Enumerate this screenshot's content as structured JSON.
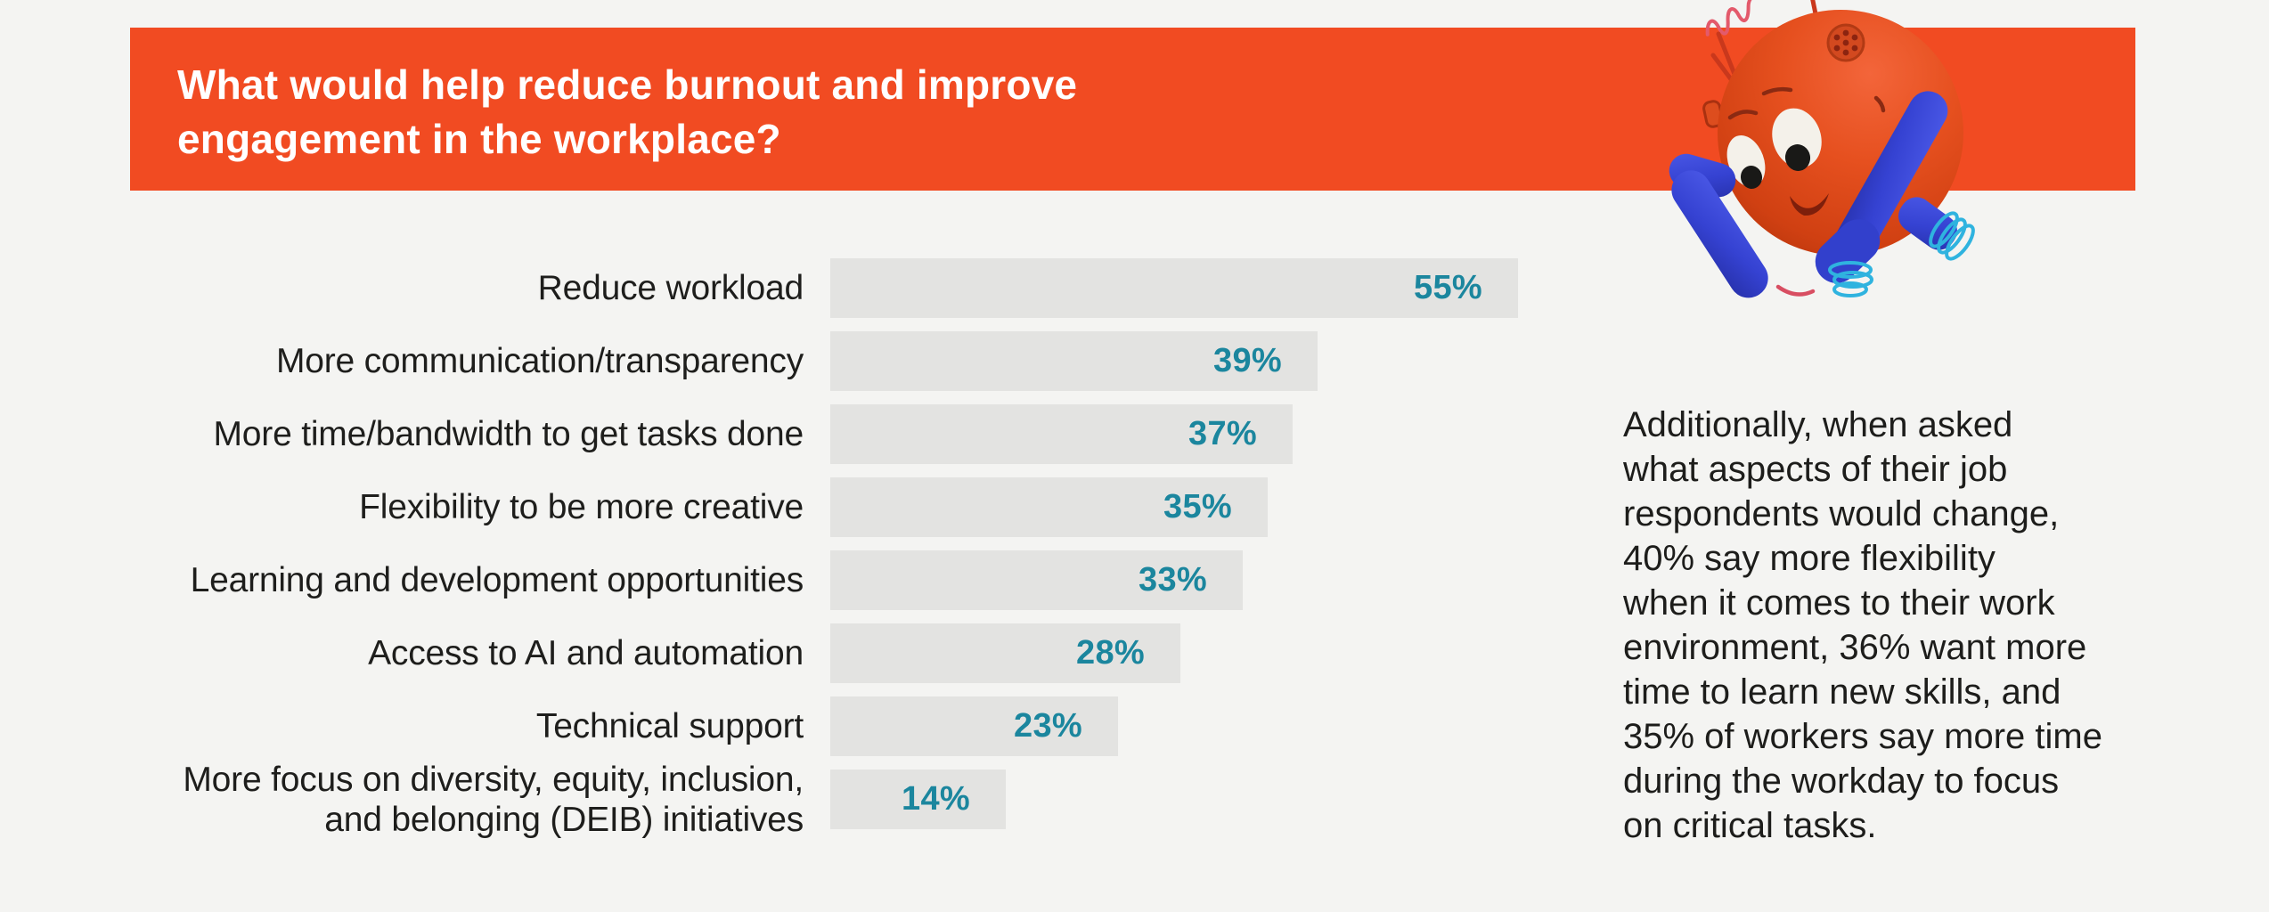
{
  "page": {
    "background": "#f4f4f2"
  },
  "header": {
    "title_lines": [
      "What would help reduce burnout and improve",
      "engagement in the workplace?"
    ],
    "background": "#f14b22",
    "text_color": "#ffffff"
  },
  "mascot": {
    "description": "orange ball robot with blue arms and teal springs"
  },
  "chart_data": {
    "type": "bar",
    "orientation": "horizontal",
    "title": "What would help reduce burnout and improve engagement in the workplace?",
    "categories": [
      "Reduce workload",
      "More communication/transparency",
      "More time/bandwidth to get tasks done",
      "Flexibility to be more creative",
      "Learning and development opportunities",
      "Access to AI and automation",
      "Technical support",
      "More focus on diversity, equity, inclusion,\nand belonging (DEIB) initiatives"
    ],
    "values": [
      55,
      39,
      37,
      35,
      33,
      28,
      23,
      14
    ],
    "value_suffix": "%",
    "xlim": [
      0,
      55
    ],
    "grid": false,
    "legend": false,
    "value_label_position": "inside-end",
    "bar_color": "#e3e3e1",
    "value_color": "#1b869e",
    "label_color": "#1e1e1c"
  },
  "side_note": {
    "lines": [
      "Additionally, when asked",
      "what aspects of their job",
      "respondents would change,",
      "40% say more flexibility",
      "when it comes to their work",
      "environment, 36% want more",
      "time to learn new skills, and",
      "35% of workers say more time",
      "during the workday to focus",
      "on critical tasks."
    ]
  }
}
